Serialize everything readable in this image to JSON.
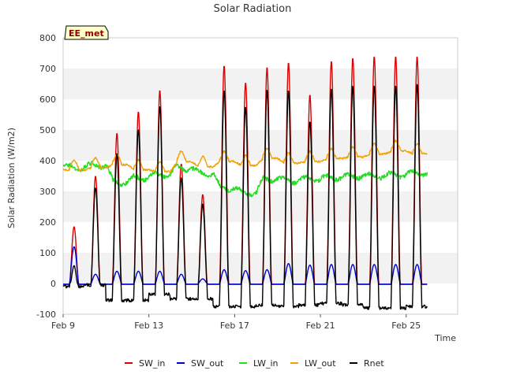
{
  "chart_data": {
    "type": "line",
    "title": "Solar Radiation",
    "xlabel": "Time",
    "ylabel": "Solar Radiation (W/m2)",
    "badge": "EE_met",
    "xlim": [
      9.0,
      27.4
    ],
    "ylim": [
      -100,
      800
    ],
    "yticks": [
      -100,
      0,
      100,
      200,
      300,
      400,
      500,
      600,
      700,
      800
    ],
    "xticks": [
      {
        "value": 9,
        "label": "Feb 9"
      },
      {
        "value": 13,
        "label": "Feb 13"
      },
      {
        "value": 17,
        "label": "Feb 17"
      },
      {
        "value": 21,
        "label": "Feb 21"
      },
      {
        "value": 25,
        "label": "Feb 25"
      }
    ],
    "grid": "horizontal alternating bands",
    "legend_position": "bottom",
    "day_start": 9,
    "days": [
      {
        "sw_in": 185,
        "sw_out": 120,
        "lw_in": 378,
        "lw_out": 378,
        "rnet_night": -10
      },
      {
        "sw_in": 350,
        "sw_out": 30,
        "lw_in": 385,
        "lw_out": 385,
        "rnet_night": -5
      },
      {
        "sw_in": 490,
        "sw_out": 40,
        "lw_in": 330,
        "lw_out": 395,
        "rnet_night": -55
      },
      {
        "sw_in": 560,
        "sw_out": 40,
        "lw_in": 345,
        "lw_out": 378,
        "rnet_night": -55
      },
      {
        "sw_in": 630,
        "sw_out": 40,
        "lw_in": 355,
        "lw_out": 372,
        "rnet_night": -35
      },
      {
        "sw_in": 390,
        "sw_out": 30,
        "lw_in": 375,
        "lw_out": 405,
        "rnet_night": -50
      },
      {
        "sw_in": 290,
        "sw_out": 15,
        "lw_in": 360,
        "lw_out": 388,
        "rnet_night": -50
      },
      {
        "sw_in": 710,
        "sw_out": 45,
        "lw_in": 310,
        "lw_out": 405,
        "rnet_night": -75
      },
      {
        "sw_in": 655,
        "sw_out": 42,
        "lw_in": 295,
        "lw_out": 392,
        "rnet_night": -75
      },
      {
        "sw_in": 705,
        "sw_out": 45,
        "lw_in": 340,
        "lw_out": 415,
        "rnet_night": -70
      },
      {
        "sw_in": 720,
        "sw_out": 65,
        "lw_in": 335,
        "lw_out": 400,
        "rnet_night": -75
      },
      {
        "sw_in": 615,
        "sw_out": 60,
        "lw_in": 340,
        "lw_out": 405,
        "rnet_night": -70
      },
      {
        "sw_in": 725,
        "sw_out": 62,
        "lw_in": 345,
        "lw_out": 415,
        "rnet_night": -65
      },
      {
        "sw_in": 735,
        "sw_out": 62,
        "lw_in": 350,
        "lw_out": 420,
        "rnet_night": -70
      },
      {
        "sw_in": 740,
        "sw_out": 62,
        "lw_in": 350,
        "lw_out": 430,
        "rnet_night": -80
      },
      {
        "sw_in": 740,
        "sw_out": 62,
        "lw_in": 355,
        "lw_out": 440,
        "rnet_night": -80
      },
      {
        "sw_in": 740,
        "sw_out": 62,
        "lw_in": 360,
        "lw_out": 430,
        "rnet_night": -75
      }
    ],
    "series": [
      {
        "name": "SW_in",
        "color": "#dd0000"
      },
      {
        "name": "SW_out",
        "color": "#0000cc"
      },
      {
        "name": "LW_in",
        "color": "#22dd22"
      },
      {
        "name": "LW_out",
        "color": "#f0a000"
      },
      {
        "name": "Rnet",
        "color": "#000000"
      }
    ]
  }
}
